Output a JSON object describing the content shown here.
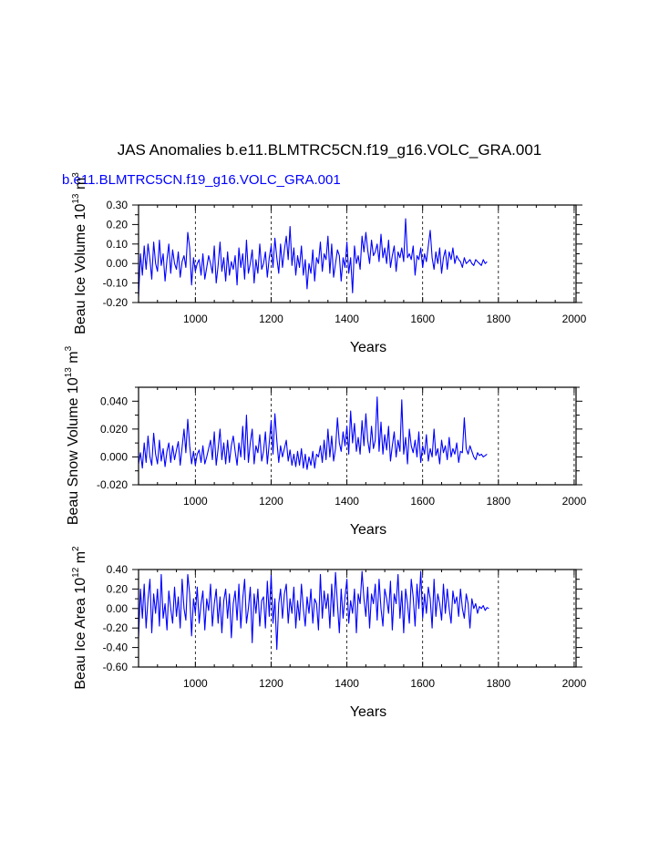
{
  "figure": {
    "title": "JAS Anomalies b.e11.BLMTRC5CN.f19_g16.VOLC_GRA.001",
    "case_label": "b.e11.BLMTRC5CN.f19_g16.VOLC_GRA.001",
    "line_color": "#0000ff"
  },
  "chart_data": [
    {
      "type": "line",
      "name": "beau-ice-volume",
      "title": "",
      "xlabel": "Years",
      "ylabel": "Beau Ice Volume 10",
      "ylabel_sup1": "13",
      "ylabel_unit": " m",
      "ylabel_sup2": "3",
      "xlim": [
        850,
        2005
      ],
      "ylim": [
        -0.2,
        0.3
      ],
      "xticks": [
        1000,
        1200,
        1400,
        1600,
        1800,
        2000
      ],
      "xtick_labels": [
        "1000",
        "1200",
        "1400",
        "1600",
        "1800",
        "2000"
      ],
      "yticks": [
        -0.2,
        -0.1,
        0.0,
        0.1,
        0.2,
        0.3
      ],
      "ytick_labels": [
        "-0.20",
        "-0.10",
        "0.00",
        "0.10",
        "0.20",
        "0.30"
      ],
      "grid": "dashed vertical at century ticks",
      "series": [
        {
          "name": "Beau Ice Volume anomaly",
          "x_start": 850,
          "x_step": 5,
          "values": [
            -0.17,
            0.05,
            -0.06,
            0.09,
            -0.03,
            0.1,
            0.02,
            -0.08,
            0.11,
            0.0,
            -0.04,
            0.12,
            -0.01,
            0.05,
            -0.09,
            0.02,
            0.1,
            -0.05,
            0.07,
            0.0,
            -0.03,
            0.06,
            -0.07,
            0.01,
            0.04,
            -0.02,
            0.16,
            0.08,
            -0.11,
            0.03,
            -0.04,
            0.0,
            0.02,
            -0.06,
            0.05,
            -0.08,
            -0.02,
            0.04,
            0.0,
            -0.05,
            0.09,
            -0.1,
            -0.01,
            0.11,
            -0.04,
            0.03,
            -0.09,
            0.06,
            -0.06,
            0.01,
            -0.03,
            0.04,
            -0.11,
            0.08,
            -0.02,
            0.05,
            -0.08,
            0.12,
            -0.05,
            0.0,
            0.07,
            -0.1,
            0.02,
            -0.05,
            0.1,
            -0.03,
            0.0,
            0.06,
            -0.07,
            0.03,
            0.09,
            -0.02,
            0.13,
            0.03,
            -0.05,
            0.1,
            -0.02,
            0.07,
            0.14,
            0.02,
            0.19,
            -0.01,
            0.08,
            -0.06,
            0.04,
            -0.02,
            0.09,
            -0.06,
            0.02,
            -0.13,
            0.0,
            -0.05,
            0.07,
            -0.09,
            0.03,
            0.0,
            0.11,
            -0.04,
            0.05,
            0.02,
            0.14,
            -0.05,
            0.1,
            -0.07,
            0.0,
            0.07,
            0.04,
            -0.09,
            0.03,
            -0.02,
            0.11,
            -0.05,
            0.03,
            -0.15,
            0.09,
            0.0,
            0.04,
            -0.03,
            0.14,
            0.06,
            0.16,
            0.07,
            0.0,
            0.12,
            0.04,
            0.06,
            0.1,
            0.01,
            0.15,
            0.03,
            0.08,
            0.0,
            0.12,
            -0.02,
            0.04,
            0.09,
            -0.04,
            0.06,
            0.03,
            0.08,
            0.01,
            0.23,
            0.03,
            0.05,
            0.02,
            0.09,
            -0.06,
            0.04,
            0.02,
            0.08,
            -0.02,
            0.05,
            0.01,
            0.09,
            0.17,
            0.03,
            -0.03,
            0.06,
            0.0,
            0.08,
            -0.05,
            0.03,
            0.07,
            -0.03,
            0.06,
            0.02,
            0.08,
            0.0,
            0.04,
            0.02,
            0.01,
            -0.02,
            0.03,
            0.0,
            0.01,
            0.02,
            0.0,
            -0.01,
            0.02,
            0.01,
            0.0,
            -0.01,
            0.02,
            0.0,
            0.01
          ]
        }
      ]
    },
    {
      "type": "line",
      "name": "beau-snow-volume",
      "title": "",
      "xlabel": "Years",
      "ylabel": "Beau Snow Volume 10",
      "ylabel_sup1": "13",
      "ylabel_unit": " m",
      "ylabel_sup2": "3",
      "xlim": [
        850,
        2005
      ],
      "ylim": [
        -0.02,
        0.05
      ],
      "xticks": [
        1000,
        1200,
        1400,
        1600,
        1800,
        2000
      ],
      "xtick_labels": [
        "1000",
        "1200",
        "1400",
        "1600",
        "1800",
        "2000"
      ],
      "yticks": [
        -0.02,
        0.0,
        0.02,
        0.04
      ],
      "ytick_labels": [
        "-0.020",
        "0.000",
        "0.020",
        "0.040"
      ],
      "grid": "dashed vertical at century ticks",
      "series": [
        {
          "name": "Beau Snow Volume anomaly",
          "x_start": 850,
          "x_step": 5,
          "values": [
            -0.005,
            0.003,
            -0.008,
            0.01,
            -0.004,
            0.015,
            0.0,
            -0.006,
            0.017,
            0.002,
            -0.005,
            0.012,
            -0.003,
            0.006,
            -0.007,
            0.004,
            0.01,
            -0.004,
            0.008,
            -0.002,
            0.005,
            0.011,
            -0.006,
            0.007,
            0.02,
            0.003,
            0.027,
            0.008,
            -0.005,
            0.004,
            -0.006,
            0.002,
            0.005,
            -0.004,
            0.008,
            -0.005,
            0.0,
            0.006,
            0.012,
            -0.002,
            0.018,
            -0.006,
            0.006,
            0.02,
            -0.002,
            0.01,
            -0.005,
            0.012,
            -0.004,
            0.008,
            0.015,
            0.004,
            -0.006,
            0.01,
            0.0,
            0.022,
            -0.002,
            0.03,
            -0.004,
            0.01,
            0.02,
            -0.005,
            0.008,
            0.003,
            0.016,
            -0.003,
            0.004,
            0.018,
            -0.005,
            0.01,
            0.026,
            0.002,
            0.031,
            0.012,
            -0.004,
            0.008,
            0.0,
            0.006,
            0.012,
            -0.003,
            0.005,
            -0.006,
            0.002,
            -0.007,
            0.004,
            -0.006,
            0.006,
            -0.008,
            0.002,
            -0.009,
            0.0,
            -0.006,
            0.004,
            -0.008,
            0.002,
            0.0,
            0.008,
            -0.004,
            0.012,
            -0.002,
            0.02,
            0.0,
            0.015,
            -0.003,
            0.006,
            0.028,
            0.01,
            0.004,
            0.018,
            0.008,
            0.022,
            0.002,
            0.033,
            0.01,
            0.024,
            0.004,
            0.014,
            0.002,
            0.026,
            0.008,
            0.031,
            0.012,
            0.003,
            0.022,
            0.006,
            0.012,
            0.043,
            0.004,
            0.025,
            0.002,
            0.016,
            0.005,
            0.022,
            -0.003,
            0.008,
            0.018,
            0.0,
            0.012,
            0.004,
            0.041,
            0.002,
            0.014,
            -0.005,
            0.02,
            0.008,
            0.003,
            0.012,
            0.0,
            0.018,
            -0.004,
            0.008,
            0.002,
            0.016,
            -0.003,
            0.006,
            0.0,
            0.02,
            0.001,
            0.006,
            -0.005,
            0.012,
            0.003,
            0.008,
            -0.002,
            0.014,
            0.0,
            0.006,
            0.002,
            0.01,
            -0.004,
            0.004,
            0.003,
            0.028,
            0.006,
            0.002,
            0.008,
            0.004,
            0.0,
            -0.002,
            0.003,
            0.001,
            0.002,
            0.0,
            0.001,
            0.002
          ]
        }
      ]
    },
    {
      "type": "line",
      "name": "beau-ice-area",
      "title": "",
      "xlabel": "Years",
      "ylabel": "Beau Ice Area 10",
      "ylabel_sup1": "12",
      "ylabel_unit": " m",
      "ylabel_sup2": "2",
      "xlim": [
        850,
        2005
      ],
      "ylim": [
        -0.6,
        0.4
      ],
      "xticks": [
        1000,
        1200,
        1400,
        1600,
        1800,
        2000
      ],
      "xtick_labels": [
        "1000",
        "1200",
        "1400",
        "1600",
        "1800",
        "2000"
      ],
      "yticks": [
        -0.6,
        -0.4,
        -0.2,
        0.0,
        0.2,
        0.4
      ],
      "ytick_labels": [
        "-0.60",
        "-0.40",
        "-0.20",
        "0.00",
        "0.20",
        "0.40"
      ],
      "grid": "dashed vertical at century ticks",
      "series": [
        {
          "name": "Beau Ice Area anomaly",
          "x_start": 850,
          "x_step": 5,
          "values": [
            -0.3,
            0.2,
            -0.1,
            0.25,
            -0.2,
            0.1,
            0.3,
            -0.25,
            0.15,
            -0.05,
            0.2,
            -0.18,
            0.35,
            -0.1,
            0.05,
            -0.22,
            0.18,
            0.0,
            -0.15,
            0.22,
            -0.08,
            0.12,
            -0.2,
            0.3,
            0.0,
            -0.12,
            0.35,
            0.15,
            -0.28,
            0.1,
            -0.05,
            0.22,
            -0.15,
            0.05,
            0.18,
            -0.22,
            0.1,
            -0.02,
            0.25,
            -0.18,
            0.05,
            0.2,
            -0.15,
            0.12,
            -0.25,
            0.08,
            0.2,
            -0.1,
            0.15,
            -0.3,
            0.05,
            0.18,
            -0.12,
            0.25,
            -0.2,
            0.1,
            0.3,
            -0.15,
            0.0,
            0.22,
            -0.35,
            0.15,
            -0.05,
            0.2,
            -0.18,
            0.08,
            0.12,
            -0.2,
            0.28,
            -0.08,
            0.35,
            -0.15,
            0.1,
            -0.42,
            0.05,
            0.2,
            -0.1,
            0.15,
            0.25,
            -0.15,
            0.1,
            -0.05,
            0.22,
            -0.2,
            0.08,
            -0.12,
            0.25,
            0.0,
            -0.18,
            0.12,
            -0.05,
            0.2,
            -0.15,
            0.1,
            0.05,
            -0.22,
            0.35,
            -0.1,
            0.18,
            0.0,
            0.15,
            -0.2,
            0.25,
            -0.08,
            0.37,
            0.05,
            -0.25,
            0.2,
            -0.1,
            0.12,
            0.3,
            -0.15,
            0.08,
            -0.05,
            0.2,
            -0.25,
            0.15,
            0.05,
            0.38,
            0.1,
            -0.08,
            0.22,
            -0.2,
            0.15,
            0.05,
            0.25,
            -0.12,
            0.3,
            0.0,
            -0.18,
            0.2,
            0.1,
            -0.05,
            0.28,
            -0.22,
            0.15,
            0.05,
            0.35,
            -0.1,
            0.18,
            -0.25,
            0.2,
            0.05,
            -0.15,
            0.3,
            0.12,
            -0.18,
            0.25,
            0.0,
            0.38,
            -0.1,
            0.15,
            -0.05,
            0.22,
            0.1,
            -0.2,
            0.3,
            -0.08,
            0.15,
            0.05,
            -0.12,
            0.25,
            -0.05,
            0.2,
            0.0,
            -0.15,
            0.18,
            0.05,
            0.12,
            -0.08,
            0.2,
            0.0,
            -0.1,
            0.15,
            0.05,
            -0.2,
            0.1,
            0.0,
            0.05,
            -0.05,
            0.02,
            0.0,
            0.03,
            -0.02,
            0.01,
            0.0
          ]
        }
      ]
    }
  ]
}
